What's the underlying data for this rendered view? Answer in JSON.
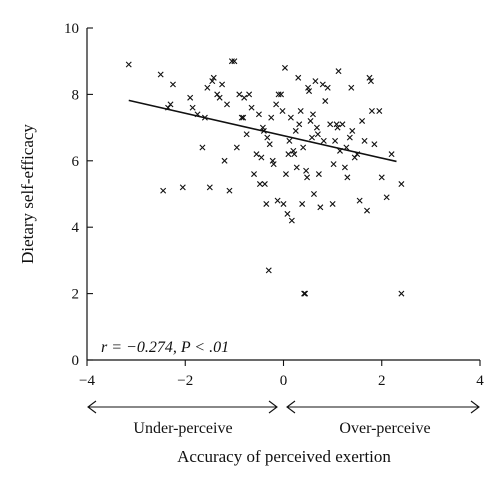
{
  "chart_data": {
    "type": "scatter",
    "title": "",
    "xlabel": "Accuracy of perceived exertion",
    "ylabel": "Dietary self-efficacy",
    "xlim": [
      -4,
      4
    ],
    "ylim": [
      0,
      10
    ],
    "xticks": [
      "-4",
      "-2",
      "0",
      "2",
      "4"
    ],
    "yticks": [
      "0",
      "2",
      "4",
      "6",
      "8",
      "10"
    ],
    "marker": "x",
    "grid": false,
    "annotation": "r = −0.274, P < .01",
    "under_label": "Under-perceive",
    "over_label": "Over-perceive",
    "trendline": {
      "x": [
        -3.15,
        2.3
      ],
      "y": [
        7.82,
        5.98
      ]
    },
    "points": [
      [
        -3.15,
        8.9
      ],
      [
        -2.5,
        8.6
      ],
      [
        -2.45,
        5.1
      ],
      [
        -2.35,
        7.6
      ],
      [
        -2.3,
        7.7
      ],
      [
        -2.25,
        8.3
      ],
      [
        -2.05,
        5.2
      ],
      [
        -1.9,
        7.9
      ],
      [
        -1.85,
        7.6
      ],
      [
        -1.75,
        7.4
      ],
      [
        -1.65,
        6.4
      ],
      [
        -1.6,
        7.3
      ],
      [
        -1.55,
        8.2
      ],
      [
        -1.5,
        5.2
      ],
      [
        -1.45,
        8.4
      ],
      [
        -1.42,
        8.5
      ],
      [
        -1.35,
        8.0
      ],
      [
        -1.3,
        7.9
      ],
      [
        -1.25,
        8.3
      ],
      [
        -1.2,
        6.0
      ],
      [
        -1.15,
        7.7
      ],
      [
        -1.1,
        5.1
      ],
      [
        -1.05,
        9.0
      ],
      [
        -1.0,
        9.0
      ],
      [
        -0.95,
        6.4
      ],
      [
        -0.9,
        8.0
      ],
      [
        -0.85,
        7.3
      ],
      [
        -0.82,
        7.3
      ],
      [
        -0.8,
        7.9
      ],
      [
        -0.75,
        6.8
      ],
      [
        -0.7,
        8.0
      ],
      [
        -0.65,
        7.6
      ],
      [
        -0.6,
        5.6
      ],
      [
        -0.55,
        6.2
      ],
      [
        -0.5,
        7.4
      ],
      [
        -0.48,
        5.3
      ],
      [
        -0.45,
        6.1
      ],
      [
        -0.42,
        7.0
      ],
      [
        -0.4,
        6.9
      ],
      [
        -0.38,
        5.3
      ],
      [
        -0.35,
        4.7
      ],
      [
        -0.33,
        6.7
      ],
      [
        -0.3,
        2.7
      ],
      [
        -0.28,
        6.5
      ],
      [
        -0.25,
        7.3
      ],
      [
        -0.22,
        6.0
      ],
      [
        -0.2,
        5.9
      ],
      [
        -0.15,
        7.7
      ],
      [
        -0.12,
        4.8
      ],
      [
        -0.1,
        8.0
      ],
      [
        -0.05,
        8.0
      ],
      [
        -0.02,
        7.5
      ],
      [
        0.0,
        4.7
      ],
      [
        0.03,
        8.8
      ],
      [
        0.05,
        5.6
      ],
      [
        0.08,
        4.4
      ],
      [
        0.1,
        6.2
      ],
      [
        0.12,
        6.6
      ],
      [
        0.15,
        7.3
      ],
      [
        0.17,
        4.2
      ],
      [
        0.2,
        6.3
      ],
      [
        0.22,
        6.2
      ],
      [
        0.25,
        6.9
      ],
      [
        0.27,
        5.8
      ],
      [
        0.3,
        8.5
      ],
      [
        0.32,
        7.1
      ],
      [
        0.35,
        7.5
      ],
      [
        0.38,
        4.7
      ],
      [
        0.4,
        6.4
      ],
      [
        0.42,
        2.0
      ],
      [
        0.44,
        2.0
      ],
      [
        0.46,
        5.7
      ],
      [
        0.48,
        5.5
      ],
      [
        0.5,
        8.2
      ],
      [
        0.52,
        8.1
      ],
      [
        0.55,
        7.2
      ],
      [
        0.58,
        6.7
      ],
      [
        0.6,
        7.4
      ],
      [
        0.62,
        5.0
      ],
      [
        0.65,
        8.4
      ],
      [
        0.68,
        7.0
      ],
      [
        0.7,
        6.8
      ],
      [
        0.72,
        5.6
      ],
      [
        0.75,
        4.6
      ],
      [
        0.8,
        8.3
      ],
      [
        0.82,
        6.6
      ],
      [
        0.85,
        7.8
      ],
      [
        0.9,
        8.2
      ],
      [
        0.95,
        7.1
      ],
      [
        1.0,
        4.7
      ],
      [
        1.02,
        5.9
      ],
      [
        1.05,
        6.6
      ],
      [
        1.08,
        7.1
      ],
      [
        1.1,
        7.0
      ],
      [
        1.12,
        8.7
      ],
      [
        1.15,
        6.3
      ],
      [
        1.2,
        7.1
      ],
      [
        1.25,
        5.8
      ],
      [
        1.28,
        6.4
      ],
      [
        1.3,
        5.5
      ],
      [
        1.35,
        6.7
      ],
      [
        1.38,
        8.2
      ],
      [
        1.4,
        6.9
      ],
      [
        1.45,
        6.1
      ],
      [
        1.5,
        6.2
      ],
      [
        1.55,
        4.8
      ],
      [
        1.6,
        7.2
      ],
      [
        1.65,
        6.6
      ],
      [
        1.7,
        4.5
      ],
      [
        1.75,
        8.5
      ],
      [
        1.78,
        8.4
      ],
      [
        1.8,
        7.5
      ],
      [
        1.85,
        6.5
      ],
      [
        1.95,
        7.5
      ],
      [
        2.0,
        5.5
      ],
      [
        2.1,
        4.9
      ],
      [
        2.2,
        6.2
      ],
      [
        2.4,
        5.3
      ],
      [
        2.4,
        2.0
      ]
    ]
  }
}
